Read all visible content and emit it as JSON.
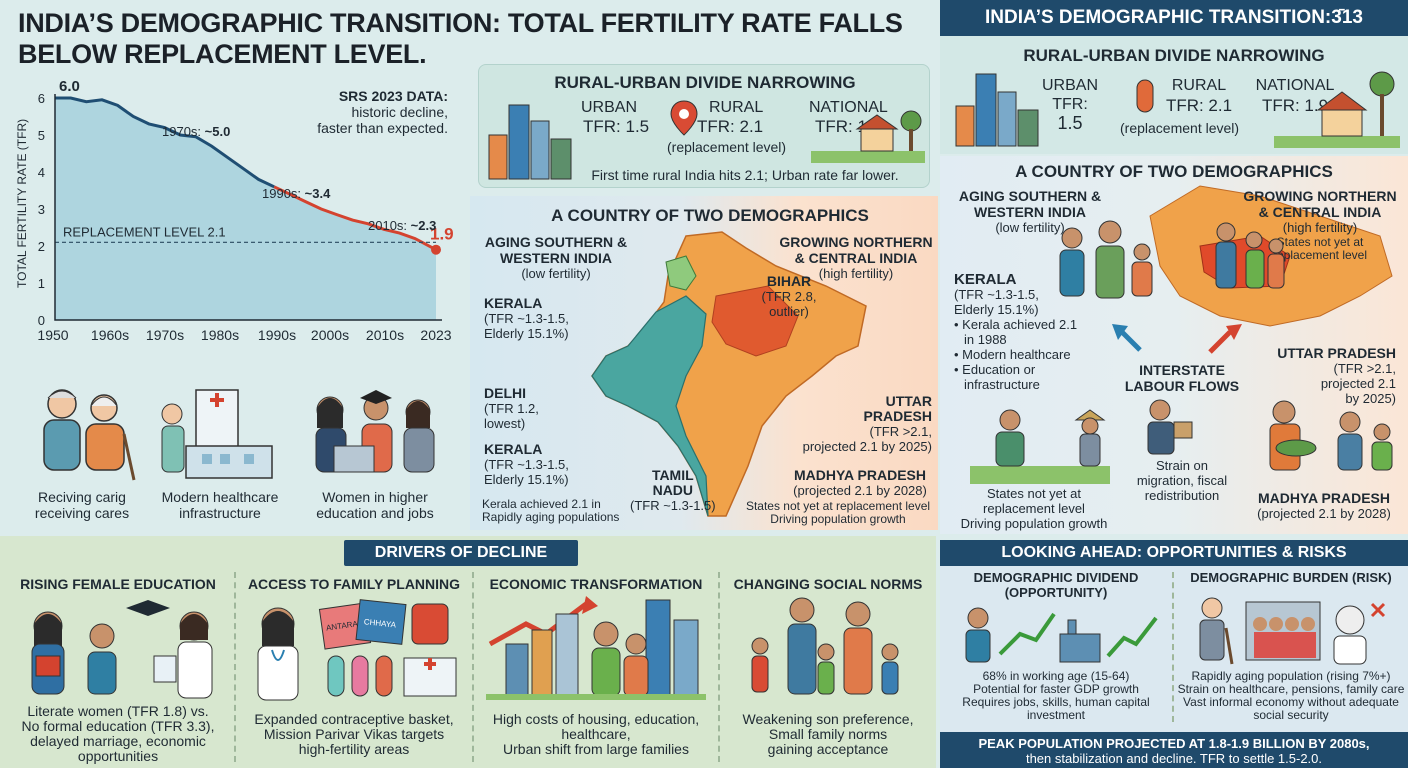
{
  "title": "INDIA’S DEMOGRAPHIC TRANSITION: TOTAL FERTILITY RATE FALLS BELOW REPLACEMENT LEVEL.",
  "right_header": "INDIA’S DEMOGRAPHIC TRANSITION:3̄13",
  "chart_data": {
    "type": "area",
    "ylabel": "TOTAL FERTILITY RATE (TFR)",
    "ylim": [
      0,
      6
    ],
    "yticks": [
      "0",
      "1",
      "2",
      "3",
      "4",
      "5",
      "6"
    ],
    "x_tick_labels": [
      "1950",
      "1960s",
      "1970s",
      "1980s",
      "1990s",
      "2000s",
      "2010s",
      "2023"
    ],
    "x": [
      1950,
      1953,
      1956,
      1959,
      1962,
      1965,
      1968,
      1971,
      1974,
      1977,
      1980,
      1983,
      1986,
      1989,
      1992,
      1995,
      1998,
      2001,
      2004,
      2007,
      2010,
      2013,
      2016,
      2019,
      2023
    ],
    "values": [
      6.0,
      6.0,
      5.9,
      5.95,
      5.8,
      5.5,
      5.3,
      5.2,
      5.0,
      4.95,
      4.7,
      4.4,
      4.1,
      3.8,
      3.6,
      3.4,
      3.2,
      3.0,
      2.85,
      2.7,
      2.6,
      2.45,
      2.35,
      2.2,
      1.9
    ],
    "replacement_level": 2.1,
    "replacement_label": "REPLACEMENT LEVEL 2.1",
    "start_label": "6.0",
    "end_label": "1.9",
    "annotations": [
      {
        "prefix": "1970s: ",
        "value": "~5.0"
      },
      {
        "prefix": "1990s: ",
        "value": "~3.4"
      },
      {
        "prefix": "2010s: ",
        "value": "~2.3"
      }
    ],
    "colors": {
      "area": "#a9d3de",
      "line_early": "#1f4e73",
      "line_late": "#d4432f",
      "end_point": "#d4432f"
    }
  },
  "srs": {
    "title": "SRS 2023 DATA:",
    "line1": "historic decline,",
    "line2": "faster than expected."
  },
  "icons_row": [
    {
      "icon": "elderly-couple-icon",
      "line1": "Reciving carig",
      "line2": "receiving cares"
    },
    {
      "icon": "hospital-icon",
      "line1": "Modern healthcare",
      "line2": "infrastructure"
    },
    {
      "icon": "women-education-icon",
      "line1": "Women in higher",
      "line2": "education and jobs"
    }
  ],
  "rural_urban": {
    "title": "RURAL-URBAN DIVIDE NARROWING",
    "urban_label": "URBAN",
    "urban_tfr": "TFR: 1.5",
    "rural_label": "RURAL",
    "rural_tfr": "TFR: 2.1",
    "rural_note": "(replacement level)",
    "national_label": "NATIONAL",
    "national_tfr": "TFR: 1.9",
    "footnote": "First time rural India hits 2.1; Urban rate far lower."
  },
  "two_demo": {
    "title": "A COUNTRY OF TWO DEMOGRAPHICS",
    "south_title1": "AGING SOUTHERN &",
    "south_title2": "WESTERN INDIA",
    "south_sub": "(low fertility)",
    "north_title1": "GROWING NORTHERN",
    "north_title2": "& CENTRAL INDIA",
    "north_sub": "(high fertility)",
    "kerala1_name": "KERALA",
    "kerala1_l1": "(TFR ~1.3-1.5,",
    "kerala1_l2": "Elderly 15.1%)",
    "delhi_name": "DELHI",
    "delhi_l1": "(TFR 1.2,",
    "delhi_l2": "lowest)",
    "kerala2_name": "KERALA",
    "kerala2_l1": "(TFR ~1.3-1.5,",
    "kerala2_l2": "Elderly 15.1%)",
    "kerala_note1": "Kerala achieved 2.1 in",
    "kerala_note2": "Rapidly aging populations",
    "tn_name1": "TAMIL",
    "tn_name2": "NADU",
    "tn_l1": "(TFR ~1.3-1.5)",
    "bihar_name": "BIHAR",
    "bihar_l1": "(TFR 2.8,",
    "bihar_l2": "outlier)",
    "up_name1": "UTTAR",
    "up_name2": "PRADESH",
    "up_l1": "(TFR >2.1,",
    "up_l2": "projected 2.1 by 2025)",
    "mp_name": "MADHYA PRADESH",
    "mp_l1": "(projected 2.1 by 2028)",
    "states_note1": "States not yet at replacement level",
    "states_note2": "Driving population growth"
  },
  "right_ru": {
    "title": "RURAL-URBAN DIVIDE NARROWING",
    "urban_label": "URBAN",
    "urban_tfr1": "TFR:",
    "urban_tfr2": "1.5",
    "rural_label": "RURAL",
    "rural_tfr": "TFR: 2.1",
    "rural_note": "(replacement level)",
    "national_label": "NATIONAL",
    "national_tfr": "TFR: 1.9"
  },
  "right_td": {
    "title": "A COUNTRY OF TWO DEMOGRAPHICS",
    "south_title1": "AGING SOUTHERN &",
    "south_title2": "WESTERN INDIA",
    "south_sub": "(low fertility)",
    "north_title1": "GROWING NORTHERN",
    "north_title2": "& CENTRAL INDIA",
    "north_sub": "(high fertility)",
    "north_note1": "States not yet at",
    "north_note2": "replacement level",
    "kerala_name": "KERALA",
    "kerala_l1": "(TFR ~1.3-1.5,",
    "kerala_l2": "Elderly 15.1%)",
    "bullets": [
      "• Kerala achieved 2.1",
      "  in 1988",
      "• Modern healthcare",
      "• Education or",
      "  infrastructure"
    ],
    "labour1": "INTERSTATE",
    "labour2": "LABOUR FLOWS",
    "up_name": "UTTAR PRADESH",
    "up_l1": "(TFR >2.1,",
    "up_l2": "projected 2.1",
    "up_l3": "by 2025)",
    "states1": "States not yet at",
    "states2": "replacement level",
    "states3": "Driving population growth",
    "strain1": "Strain on",
    "strain2": "migration, fiscal",
    "strain3": "redistribution",
    "mp_name": "MADHYA PRADESH",
    "mp_l1": "(projected 2.1 by 2028)"
  },
  "drivers": {
    "tag": "DRIVERS OF DECLINE",
    "cols": [
      {
        "title": "RISING FEMALE EDUCATION",
        "lines": [
          "Literate women (TFR 1.8) vs.",
          "No formal education (TFR 3.3),",
          "delayed marriage, economic",
          "opportunities"
        ]
      },
      {
        "title": "ACCESS TO FAMILY PLANNING",
        "lines": [
          "Expanded contraceptive basket,",
          "Mission Parivar Vikas targets",
          "high-fertility areas"
        ]
      },
      {
        "title": "ECONOMIC TRANSFORMATION",
        "lines": [
          "High costs of housing, education,",
          "healthcare,",
          "Urban shift from large families"
        ]
      },
      {
        "title": "CHANGING SOCIAL NORMS",
        "lines": [
          "Weakening son preference,",
          "Small family norms",
          "gaining acceptance"
        ]
      }
    ],
    "box1": "ANTARA",
    "box2": "CHHAYA"
  },
  "ahead": {
    "title": "LOOKING AHEAD: OPPORTUNITIES & RISKS",
    "div_title1": "DEMOGRAPHIC DIVIDEND",
    "div_title2": "(OPPORTUNITY)",
    "div_lines": [
      "68% in working age (15-64)",
      "Potential for faster GDP growth",
      "Requires jobs, skills, human capital",
      "investment"
    ],
    "bur_title": "DEMOGRAPHIC BURDEN (RISK)",
    "bur_lines": [
      "Rapidly aging population (rising 7%+)",
      "Strain on healthcare, pensions, family care",
      "Vast informal economy without adequate",
      "social security"
    ]
  },
  "peak": {
    "line1": "PEAK POPULATION PROJECTED AT 1.8-1.9 BILLION BY 2080s,",
    "line2": "then stabilization and decline. TFR to settle 1.5-2.0."
  }
}
